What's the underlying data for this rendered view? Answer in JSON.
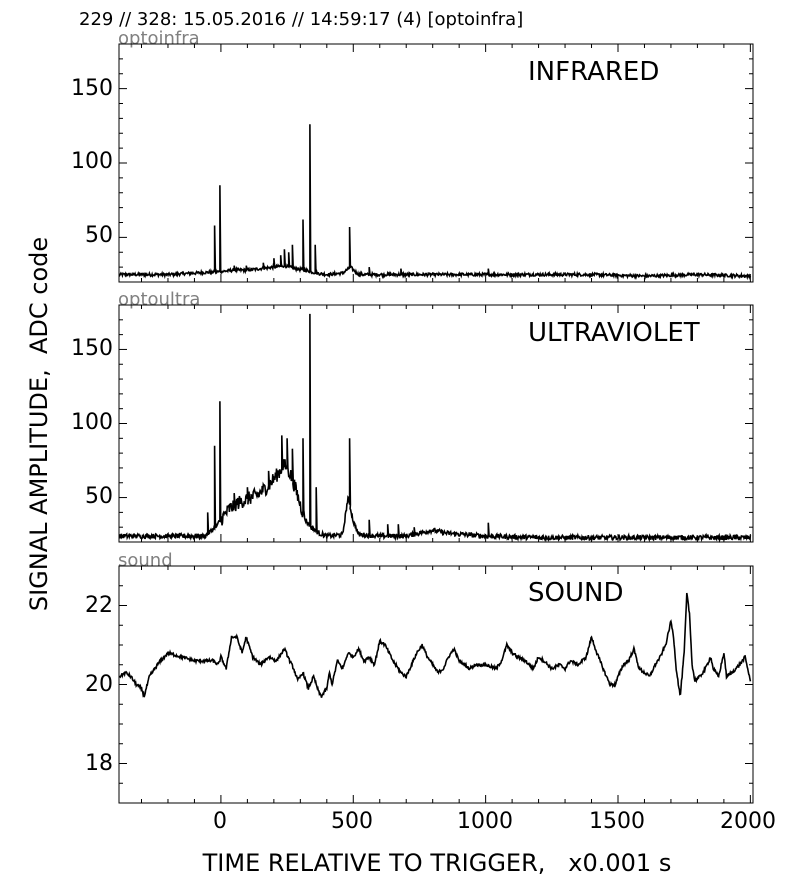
{
  "header": {
    "title": "229 // 328:   15.05.2016 // 14:59:17 (4)  [optoinfra]"
  },
  "colors": {
    "line": "#000000",
    "panel_label": "#808080",
    "background": "#ffffff"
  },
  "shared_axes": {
    "xlabel": "TIME RELATIVE TO TRIGGER,   x0.001 s",
    "ylabel": "SIGNAL AMPLITUDE,  ADC code",
    "xlim": [
      -385,
      2010
    ],
    "x_ticks": [
      0,
      500,
      1000,
      1500,
      2000
    ]
  },
  "chart_data": [
    {
      "type": "line",
      "panel_label": "optoinfra",
      "annotation": "INFRARED",
      "ylim": [
        20,
        180
      ],
      "y_ticks": [
        50,
        100,
        150
      ],
      "grid": false,
      "baseline": [
        [
          -385,
          25
        ],
        [
          -300,
          25
        ],
        [
          -200,
          25
        ],
        [
          -100,
          26
        ],
        [
          0,
          27
        ],
        [
          50,
          28
        ],
        [
          100,
          28
        ],
        [
          150,
          29
        ],
        [
          200,
          30
        ],
        [
          240,
          31
        ],
        [
          280,
          29
        ],
        [
          320,
          28
        ],
        [
          360,
          26
        ],
        [
          400,
          25
        ],
        [
          460,
          26
        ],
        [
          490,
          30
        ],
        [
          520,
          25
        ],
        [
          600,
          25
        ],
        [
          800,
          25
        ],
        [
          1000,
          25
        ],
        [
          1200,
          25
        ],
        [
          1400,
          25
        ],
        [
          1600,
          24
        ],
        [
          1800,
          25
        ],
        [
          2000,
          24
        ]
      ],
      "spikes": [
        [
          -25,
          58
        ],
        [
          -5,
          85
        ],
        [
          50,
          31
        ],
        [
          95,
          31
        ],
        [
          160,
          33
        ],
        [
          200,
          36
        ],
        [
          225,
          38
        ],
        [
          240,
          42
        ],
        [
          255,
          40
        ],
        [
          270,
          45
        ],
        [
          310,
          62
        ],
        [
          335,
          126
        ],
        [
          355,
          45
        ],
        [
          485,
          57
        ],
        [
          560,
          30
        ],
        [
          680,
          29
        ],
        [
          1010,
          29
        ]
      ]
    },
    {
      "type": "line",
      "panel_label": "optoultra",
      "annotation": "ULTRAVIOLET",
      "ylim": [
        20,
        180
      ],
      "y_ticks": [
        50,
        100,
        150
      ],
      "grid": false,
      "baseline": [
        [
          -385,
          24
        ],
        [
          -200,
          24
        ],
        [
          -60,
          24
        ],
        [
          -40,
          27
        ],
        [
          -20,
          30
        ],
        [
          0,
          35
        ],
        [
          30,
          42
        ],
        [
          60,
          46
        ],
        [
          100,
          49
        ],
        [
          140,
          52
        ],
        [
          180,
          58
        ],
        [
          210,
          65
        ],
        [
          240,
          72
        ],
        [
          260,
          67
        ],
        [
          280,
          57
        ],
        [
          300,
          45
        ],
        [
          320,
          35
        ],
        [
          340,
          30
        ],
        [
          370,
          26
        ],
        [
          400,
          24
        ],
        [
          460,
          25
        ],
        [
          480,
          50
        ],
        [
          500,
          34
        ],
        [
          520,
          25
        ],
        [
          600,
          24
        ],
        [
          700,
          24
        ],
        [
          800,
          28
        ],
        [
          850,
          26
        ],
        [
          1000,
          24
        ],
        [
          1200,
          23
        ],
        [
          1400,
          23
        ],
        [
          1600,
          23
        ],
        [
          1800,
          23
        ],
        [
          2000,
          23
        ]
      ],
      "spikes": [
        [
          -50,
          40
        ],
        [
          -25,
          85
        ],
        [
          -5,
          115
        ],
        [
          50,
          53
        ],
        [
          100,
          57
        ],
        [
          180,
          68
        ],
        [
          230,
          92
        ],
        [
          250,
          90
        ],
        [
          270,
          83
        ],
        [
          310,
          90
        ],
        [
          335,
          174
        ],
        [
          360,
          57
        ],
        [
          485,
          90
        ],
        [
          560,
          35
        ],
        [
          630,
          32
        ],
        [
          670,
          32
        ],
        [
          730,
          30
        ],
        [
          1010,
          33
        ]
      ]
    },
    {
      "type": "line",
      "panel_label": "sound",
      "annotation": "SOUND",
      "ylim": [
        17,
        23
      ],
      "y_ticks": [
        18,
        20,
        22
      ],
      "grid": false,
      "points": [
        [
          -385,
          20.2
        ],
        [
          -360,
          20.3
        ],
        [
          -340,
          20.2
        ],
        [
          -320,
          20.0
        ],
        [
          -300,
          19.9
        ],
        [
          -290,
          19.7
        ],
        [
          -270,
          20.2
        ],
        [
          -240,
          20.5
        ],
        [
          -200,
          20.8
        ],
        [
          -150,
          20.7
        ],
        [
          -100,
          20.6
        ],
        [
          -60,
          20.6
        ],
        [
          -30,
          20.6
        ],
        [
          -10,
          20.5
        ],
        [
          0,
          20.7
        ],
        [
          20,
          20.4
        ],
        [
          40,
          21.2
        ],
        [
          60,
          21.2
        ],
        [
          80,
          20.8
        ],
        [
          95,
          21.2
        ],
        [
          120,
          20.7
        ],
        [
          150,
          20.5
        ],
        [
          180,
          20.7
        ],
        [
          210,
          20.6
        ],
        [
          240,
          20.9
        ],
        [
          260,
          20.6
        ],
        [
          275,
          20.4
        ],
        [
          290,
          20.1
        ],
        [
          310,
          20.3
        ],
        [
          330,
          19.9
        ],
        [
          350,
          20.2
        ],
        [
          370,
          19.8
        ],
        [
          380,
          19.7
        ],
        [
          400,
          19.9
        ],
        [
          410,
          20.3
        ],
        [
          420,
          20.0
        ],
        [
          440,
          20.6
        ],
        [
          460,
          20.4
        ],
        [
          480,
          20.8
        ],
        [
          500,
          20.7
        ],
        [
          520,
          20.9
        ],
        [
          540,
          20.6
        ],
        [
          560,
          20.7
        ],
        [
          580,
          20.5
        ],
        [
          600,
          21.1
        ],
        [
          620,
          21.0
        ],
        [
          650,
          20.6
        ],
        [
          680,
          20.3
        ],
        [
          700,
          20.2
        ],
        [
          720,
          20.5
        ],
        [
          740,
          20.8
        ],
        [
          760,
          21.0
        ],
        [
          780,
          20.7
        ],
        [
          800,
          20.5
        ],
        [
          820,
          20.3
        ],
        [
          840,
          20.4
        ],
        [
          860,
          20.7
        ],
        [
          880,
          20.9
        ],
        [
          900,
          20.6
        ],
        [
          920,
          20.5
        ],
        [
          940,
          20.4
        ],
        [
          960,
          20.5
        ],
        [
          1000,
          20.5
        ],
        [
          1040,
          20.4
        ],
        [
          1060,
          20.6
        ],
        [
          1080,
          21.0
        ],
        [
          1100,
          20.8
        ],
        [
          1120,
          20.7
        ],
        [
          1150,
          20.6
        ],
        [
          1180,
          20.4
        ],
        [
          1200,
          20.7
        ],
        [
          1220,
          20.6
        ],
        [
          1250,
          20.4
        ],
        [
          1280,
          20.5
        ],
        [
          1300,
          20.4
        ],
        [
          1320,
          20.6
        ],
        [
          1350,
          20.5
        ],
        [
          1380,
          20.7
        ],
        [
          1400,
          21.2
        ],
        [
          1420,
          20.8
        ],
        [
          1450,
          20.3
        ],
        [
          1470,
          20.0
        ],
        [
          1490,
          20.0
        ],
        [
          1500,
          20.2
        ],
        [
          1520,
          20.5
        ],
        [
          1540,
          20.6
        ],
        [
          1560,
          20.9
        ],
        [
          1580,
          20.4
        ],
        [
          1600,
          20.3
        ],
        [
          1620,
          20.2
        ],
        [
          1640,
          20.5
        ],
        [
          1660,
          20.7
        ],
        [
          1680,
          21.0
        ],
        [
          1700,
          21.6
        ],
        [
          1710,
          21.2
        ],
        [
          1720,
          20.4
        ],
        [
          1735,
          19.7
        ],
        [
          1750,
          20.8
        ],
        [
          1760,
          22.3
        ],
        [
          1770,
          21.8
        ],
        [
          1780,
          20.5
        ],
        [
          1790,
          20.1
        ],
        [
          1810,
          20.2
        ],
        [
          1830,
          20.4
        ],
        [
          1850,
          20.7
        ],
        [
          1860,
          20.4
        ],
        [
          1880,
          20.2
        ],
        [
          1900,
          20.8
        ],
        [
          1910,
          20.2
        ],
        [
          1930,
          20.3
        ],
        [
          1960,
          20.5
        ],
        [
          1980,
          20.7
        ],
        [
          2000,
          20.1
        ]
      ]
    }
  ]
}
